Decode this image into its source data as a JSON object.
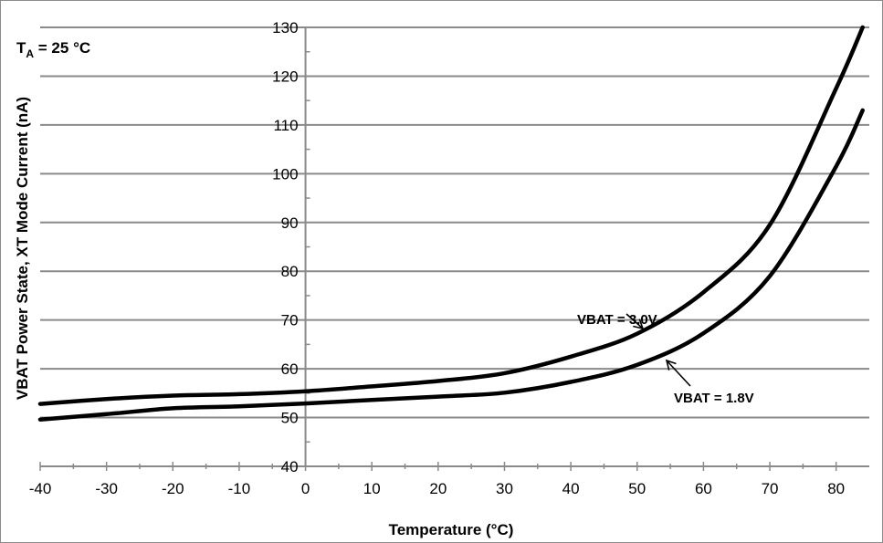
{
  "chart_data": {
    "type": "line",
    "title": "",
    "xlabel": "Temperature (°C)",
    "ylabel": "VBAT Power State, XT Mode Current (nA)",
    "xlim": [
      -40,
      85
    ],
    "ylim": [
      40,
      130
    ],
    "x_ticks": [
      "-40",
      "-30",
      "-20",
      "-10",
      "0",
      "10",
      "20",
      "30",
      "40",
      "50",
      "60",
      "70",
      "80"
    ],
    "y_ticks": [
      "40",
      "50",
      "60",
      "70",
      "80",
      "90",
      "100",
      "110",
      "120",
      "130"
    ],
    "grid": true,
    "condition_label": {
      "main": "T",
      "sub": "A",
      "rest": " = 25 °C"
    },
    "series": [
      {
        "name": "VBAT = 3.0V",
        "x": [
          -40,
          -30,
          -20,
          -10,
          0,
          10,
          20,
          30,
          40,
          50,
          60,
          70,
          80,
          84
        ],
        "y": [
          52.8,
          53.8,
          54.5,
          54.8,
          55.4,
          56.4,
          57.5,
          59.1,
          62.5,
          67.2,
          75.7,
          89.5,
          117.5,
          130
        ]
      },
      {
        "name": "VBAT = 1.8V",
        "x": [
          -40,
          -30,
          -20,
          -10,
          0,
          10,
          20,
          30,
          40,
          50,
          60,
          70,
          80,
          84
        ],
        "y": [
          49.6,
          50.7,
          51.9,
          52.3,
          52.9,
          53.6,
          54.3,
          55.1,
          57.3,
          60.8,
          67.3,
          79,
          101.5,
          113
        ]
      }
    ],
    "annotations": [
      {
        "text": "VBAT = 3.0V",
        "series": 0
      },
      {
        "text": "VBAT = 1.8V",
        "series": 1
      }
    ]
  }
}
